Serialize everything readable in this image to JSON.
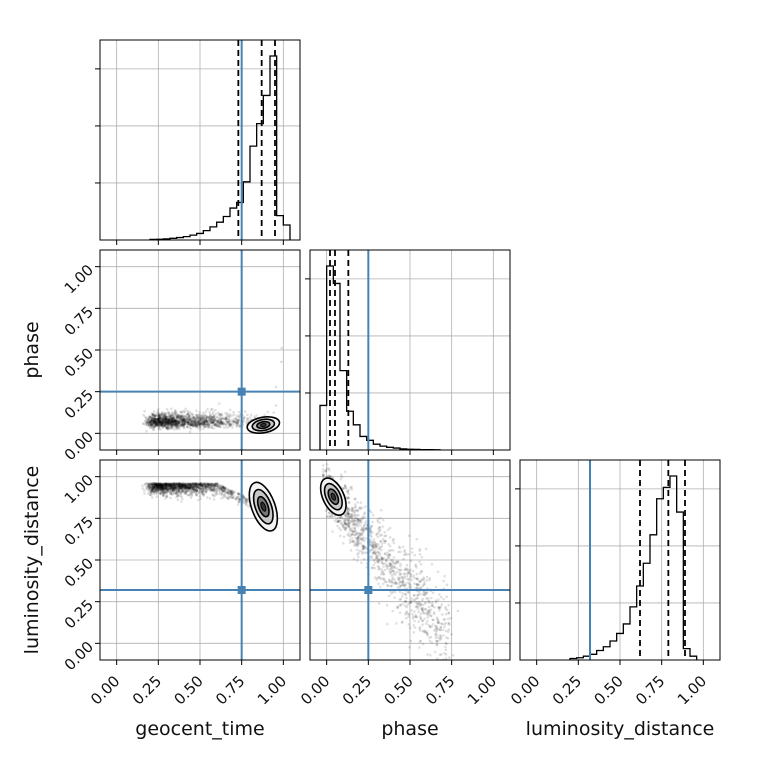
{
  "chart_data": {
    "type": "corner",
    "parameters": [
      "geocent_time",
      "phase",
      "luminosity_distance"
    ],
    "range": [
      -0.1,
      1.1
    ],
    "ticks": [
      "0.00",
      "0.25",
      "0.50",
      "0.75",
      "1.00"
    ],
    "tick_values": [
      0,
      0.25,
      0.5,
      0.75,
      1.0
    ],
    "grid": true,
    "truths": {
      "geocent_time": 0.75,
      "phase": 0.25,
      "luminosity_distance": 0.32
    },
    "truth_color": "#4682b4",
    "histogram_color": "#000000",
    "quantiles": {
      "geocent_time": [
        0.73,
        0.87,
        0.95
      ],
      "phase": [
        0.02,
        0.05,
        0.13
      ],
      "luminosity_distance": [
        0.62,
        0.79,
        0.89
      ]
    },
    "histograms": {
      "geocent_time": {
        "edges": [
          0.2,
          0.24,
          0.28,
          0.32,
          0.36,
          0.4,
          0.44,
          0.48,
          0.52,
          0.56,
          0.6,
          0.64,
          0.68,
          0.72,
          0.76,
          0.8,
          0.84,
          0.88,
          0.92,
          0.96,
          1.0,
          1.04
        ],
        "counts": [
          0.3,
          0.4,
          0.6,
          0.9,
          1.3,
          1.8,
          2.6,
          3.5,
          5,
          7,
          9.5,
          12.5,
          17,
          20,
          31,
          50,
          62,
          77,
          98,
          13,
          8
        ]
      },
      "phase": {
        "edges": [
          -0.04,
          0.0,
          0.04,
          0.08,
          0.12,
          0.16,
          0.2,
          0.24,
          0.28,
          0.32,
          0.36,
          0.4,
          0.44,
          0.48,
          0.52,
          0.56,
          0.6,
          0.64,
          0.68
        ],
        "counts": [
          23,
          95,
          86,
          41,
          20,
          13,
          7,
          5,
          3,
          2,
          1.4,
          1,
          0.6,
          0.4,
          0.3,
          0.2,
          0.15,
          0.1
        ]
      },
      "luminosity_distance": {
        "edges": [
          0.2,
          0.24,
          0.28,
          0.32,
          0.36,
          0.4,
          0.44,
          0.48,
          0.52,
          0.56,
          0.6,
          0.64,
          0.68,
          0.72,
          0.76,
          0.8,
          0.84,
          0.88,
          0.92,
          0.96
        ],
        "counts": [
          0.8,
          1.2,
          2,
          3,
          5,
          7,
          10,
          14,
          19,
          28,
          39,
          51,
          66,
          85,
          91,
          97,
          78,
          6,
          2
        ]
      }
    },
    "scatter": {
      "geocent_time_phase": {
        "trend": "phase rises steeply as geocent_time approaches 1.00; dense core near (0.88, 0.05)",
        "peak": [
          0.88,
          0.05
        ]
      },
      "geocent_time_luminosity_distance": {
        "trend": "luminosity_distance falls as geocent_time approaches 1.00; dense core near (0.88, 0.82)",
        "peak": [
          0.88,
          0.82
        ]
      },
      "phase_luminosity_distance": {
        "trend": "luminosity_distance decreases with phase; dense core near (0.04, 0.88)",
        "peak": [
          0.04,
          0.88
        ]
      }
    }
  }
}
